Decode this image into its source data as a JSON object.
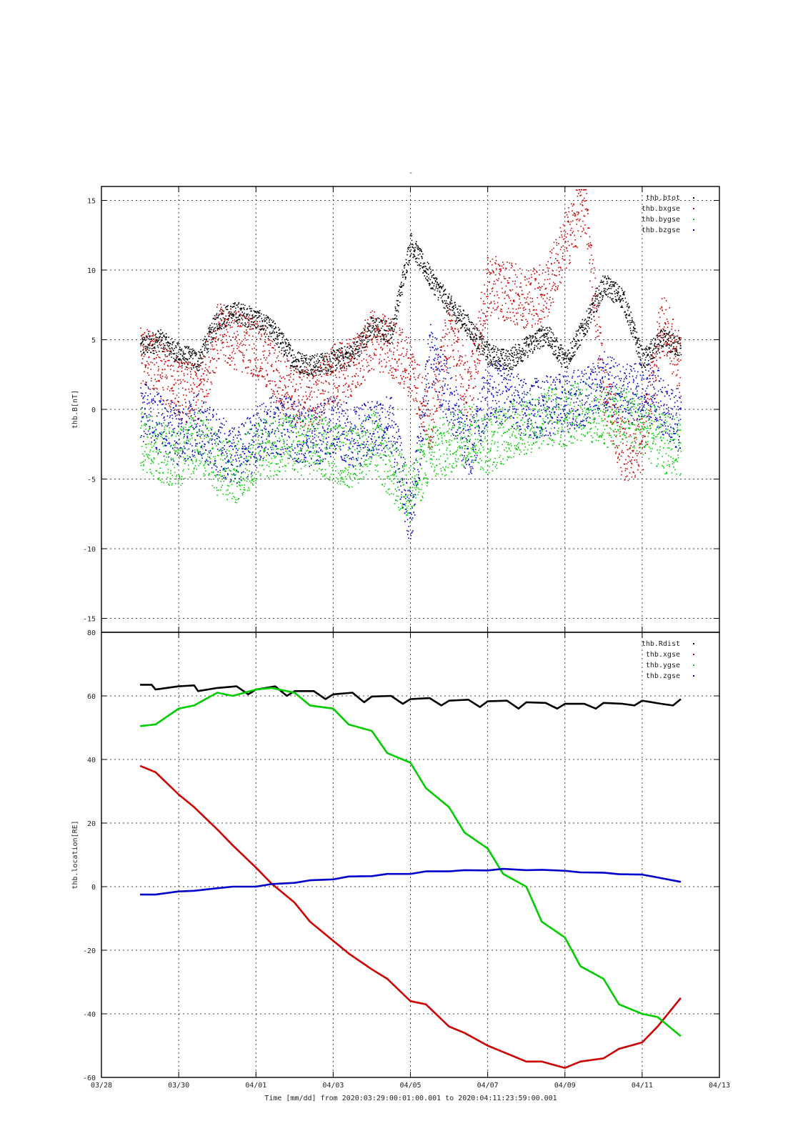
{
  "figure": {
    "title_mark": "-",
    "xlabel": "Time [mm/dd]  from 2020:03:29:00:01:00.001  to  2020:04:11:23:59:00.001",
    "x_tick_labels": [
      "03/28",
      "03/30",
      "04/01",
      "04/03",
      "04/05",
      "04/07",
      "04/09",
      "04/11",
      "04/13"
    ]
  },
  "chart_data": [
    {
      "type": "scatter",
      "ylabel": "thb.B[nT]",
      "xlim_days": [
        -1,
        15
      ],
      "x_axis_note": "x in days from 03/29 00:00",
      "ylim": [
        -16,
        16
      ],
      "yticks": [
        15,
        10,
        5,
        0,
        -5,
        -10,
        -15
      ],
      "grid": true,
      "legend": "top-right",
      "series": [
        {
          "name": "thb.btot",
          "color": "#000000",
          "x": [
            0,
            0.5,
            1,
            1.5,
            2,
            2.5,
            3,
            3.5,
            4,
            4.5,
            5,
            5.5,
            6,
            6.5,
            7,
            7.5,
            8,
            8.5,
            9,
            9.5,
            10,
            10.5,
            11,
            11.5,
            12,
            12.5,
            13,
            13.5,
            14
          ],
          "y": [
            4.5,
            5.0,
            4.0,
            3.5,
            6.5,
            7.0,
            6.5,
            5.5,
            3.5,
            3.2,
            3.5,
            4.0,
            6.0,
            5.5,
            12.0,
            9.5,
            7.5,
            6.0,
            4.0,
            3.5,
            4.5,
            5.5,
            3.5,
            6.0,
            9.0,
            8.0,
            3.5,
            5.0,
            4.5
          ]
        },
        {
          "name": "thb.bxgse",
          "color": "#cc0000",
          "x": [
            0,
            0.5,
            1,
            1.5,
            2,
            2.5,
            3,
            3.5,
            4,
            4.5,
            5,
            5.5,
            6,
            6.5,
            7,
            7.5,
            8,
            8.5,
            9,
            9.5,
            10,
            10.5,
            11,
            11.5,
            12,
            12.5,
            13,
            13.5,
            14
          ],
          "y": [
            4.0,
            3.0,
            1.5,
            1.0,
            5.5,
            5.0,
            4.5,
            2.5,
            1.0,
            0.8,
            2.5,
            3.0,
            5.0,
            4.5,
            3.0,
            -1.0,
            6.0,
            1.0,
            9.0,
            8.5,
            8.0,
            8.5,
            12.0,
            15.0,
            1.5,
            -3.0,
            -2.5,
            6.5,
            3.0
          ]
        },
        {
          "name": "thb.bygse",
          "color": "#00cc00",
          "x": [
            0,
            0.5,
            1,
            1.5,
            2,
            2.5,
            3,
            3.5,
            4,
            4.5,
            5,
            5.5,
            6,
            6.5,
            7,
            7.5,
            8,
            8.5,
            9,
            9.5,
            10,
            10.5,
            11,
            11.5,
            12,
            12.5,
            13,
            13.5,
            14
          ],
          "y": [
            -2.0,
            -3.0,
            -3.5,
            -2.0,
            -4.0,
            -4.5,
            -3.0,
            -2.5,
            -2.5,
            -2.5,
            -3.0,
            -3.5,
            -2.0,
            -4.5,
            -6.0,
            -3.0,
            -2.5,
            -1.5,
            -2.5,
            -1.5,
            -1.0,
            -0.5,
            -0.5,
            0.0,
            -0.5,
            -0.5,
            -1.0,
            -2.5,
            -2.5
          ]
        },
        {
          "name": "thb.bzgse",
          "color": "#0000cc",
          "x": [
            0,
            0.5,
            1,
            1.5,
            2,
            2.5,
            3,
            3.5,
            4,
            4.5,
            5,
            5.5,
            6,
            6.5,
            7,
            7.5,
            8,
            8.5,
            9,
            9.5,
            10,
            10.5,
            11,
            11.5,
            12,
            12.5,
            13,
            13.5,
            14
          ],
          "y": [
            0.0,
            -1.0,
            -2.0,
            -1.0,
            -2.5,
            -3.5,
            -2.0,
            -1.0,
            -1.5,
            -2.0,
            -1.0,
            -2.0,
            -1.5,
            -1.0,
            -8.0,
            4.0,
            1.0,
            -3.0,
            1.5,
            1.0,
            0.0,
            0.3,
            0.5,
            1.0,
            2.0,
            1.0,
            1.5,
            0.5,
            -1.0
          ]
        }
      ]
    },
    {
      "type": "line",
      "ylabel": "thb.location[RE]",
      "xlim_days": [
        -1,
        15
      ],
      "x_axis_note": "x in days from 03/29 00:00",
      "ylim": [
        -60,
        80
      ],
      "yticks": [
        80,
        60,
        40,
        20,
        0,
        -20,
        -40,
        -60
      ],
      "grid": true,
      "legend": "top-right",
      "series": [
        {
          "name": "thb.Rdist",
          "color": "#000000",
          "x": [
            0,
            0.3,
            0.4,
            1.0,
            1.4,
            1.5,
            2.0,
            2.5,
            2.8,
            3.0,
            3.5,
            3.8,
            4.0,
            4.5,
            4.8,
            5.0,
            5.5,
            5.8,
            6.0,
            6.5,
            6.8,
            7.0,
            7.5,
            7.8,
            8.0,
            8.5,
            8.8,
            9.0,
            9.5,
            9.8,
            10.0,
            10.5,
            10.8,
            11.0,
            11.5,
            11.8,
            12.0,
            12.5,
            12.8,
            13.0,
            13.5,
            13.8,
            14.0
          ],
          "y": [
            63.5,
            63.5,
            62.0,
            63.0,
            63.3,
            61.5,
            62.5,
            63.0,
            60.5,
            62.0,
            63.0,
            60.0,
            61.5,
            61.5,
            59.0,
            60.5,
            61.0,
            58.0,
            59.8,
            60.0,
            57.5,
            59.0,
            59.3,
            57.0,
            58.5,
            58.8,
            56.5,
            58.3,
            58.5,
            56.0,
            58.0,
            57.8,
            56.0,
            57.5,
            57.5,
            56.0,
            57.8,
            57.5,
            57.0,
            58.5,
            57.5,
            57.0,
            59.0
          ]
        },
        {
          "name": "thb.xgse",
          "color": "#cc0000",
          "x": [
            0,
            0.4,
            1.0,
            1.4,
            2.0,
            2.4,
            3.0,
            3.4,
            4.0,
            4.4,
            5.0,
            5.4,
            6.0,
            6.4,
            7.0,
            7.4,
            8.0,
            8.4,
            9.0,
            9.4,
            10.0,
            10.4,
            11.0,
            11.4,
            12.0,
            12.4,
            13.0,
            13.4,
            14.0
          ],
          "y": [
            38,
            36,
            29,
            25,
            18,
            13,
            6,
            1,
            -5,
            -11,
            -17,
            -21,
            -26,
            -29,
            -36,
            -37,
            -44,
            -46,
            -50,
            -52,
            -55,
            -55,
            -57,
            -55,
            -54,
            -51,
            -49,
            -44,
            -35
          ]
        },
        {
          "name": "thb.ygse",
          "color": "#00cc00",
          "x": [
            0,
            0.4,
            1.0,
            1.4,
            2.0,
            2.4,
            3.0,
            3.4,
            4.0,
            4.4,
            5.0,
            5.4,
            6.0,
            6.4,
            7.0,
            7.4,
            8.0,
            8.4,
            9.0,
            9.4,
            10.0,
            10.4,
            11.0,
            11.4,
            12.0,
            12.4,
            13.0,
            13.4,
            14.0
          ],
          "y": [
            50.5,
            51,
            56,
            57,
            61,
            60,
            62,
            62.5,
            61,
            57,
            56,
            51,
            49,
            42,
            39,
            31,
            25,
            17,
            12,
            4,
            0,
            -11,
            -16,
            -25,
            -29,
            -37,
            -40,
            -41,
            -47
          ]
        },
        {
          "name": "thb.zgse",
          "color": "#0000cc",
          "x": [
            0,
            0.4,
            1.0,
            1.4,
            2.0,
            2.4,
            3.0,
            3.4,
            4.0,
            4.4,
            5.0,
            5.4,
            6.0,
            6.4,
            7.0,
            7.4,
            8.0,
            8.4,
            9.0,
            9.4,
            10.0,
            10.4,
            11.0,
            11.4,
            12.0,
            12.4,
            13.0,
            13.4,
            14.0
          ],
          "y": [
            -2.5,
            -2.5,
            -1.5,
            -1.3,
            -0.5,
            0.0,
            0.0,
            0.8,
            1.2,
            2.0,
            2.3,
            3.2,
            3.3,
            4.0,
            4.0,
            4.8,
            4.8,
            5.2,
            5.1,
            5.6,
            5.2,
            5.3,
            5.0,
            4.5,
            4.4,
            3.9,
            3.8,
            2.9,
            1.5
          ]
        }
      ]
    }
  ]
}
